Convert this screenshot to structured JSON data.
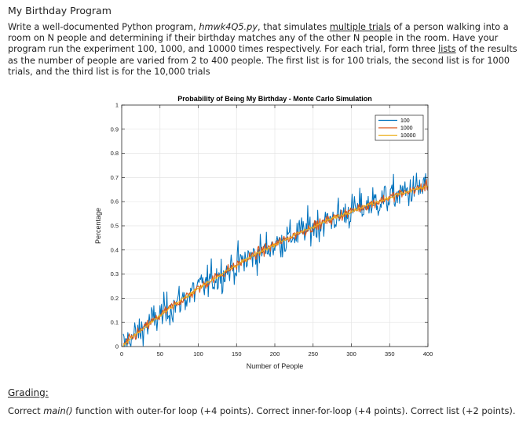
{
  "page": {
    "title": "My Birthday Program",
    "description": {
      "p1": "Write a well-documented Python program, ",
      "filename": "hmwk4Q5.py",
      "p2": ", that simulates ",
      "link1": "multiple trials",
      "p3": " of a person walking into a room on N people and determining if their birthday matches any of the other N people in the room. Have your program run the experiment 100, 1000, and 10000 times respectively.  For each trial, form three ",
      "link2": "lists",
      "p4": " of the results as the number of people are varied from 2 to 400 people. The first list is for 100 trials, the second list is for 1000 trials, and the third list is for the 10,000 trials"
    },
    "grading": {
      "label": "Grading",
      "label_suffix": ":",
      "t1": "Correct ",
      "main_fn": "main()",
      "t2": " function with outer-for loop (+4 points).  Correct inner-for-loop (+4 points). Correct list (+2 points)."
    }
  },
  "chart_data": {
    "type": "line",
    "title": "Probability of Being My Birthday - Monte Carlo Simulation",
    "xlabel": "Number of People",
    "ylabel": "Percentage",
    "xlim": [
      0,
      400
    ],
    "ylim": [
      0,
      1
    ],
    "xticks": [
      0,
      50,
      100,
      150,
      200,
      250,
      300,
      350,
      400
    ],
    "yticks": [
      0,
      0.1,
      0.2,
      0.3,
      0.4,
      0.5,
      0.6,
      0.7,
      0.8,
      0.9,
      1
    ],
    "ytick_labels": [
      "0",
      "0.1",
      "0.2",
      "0.3",
      "0.4",
      "0.5",
      "0.6",
      "0.7",
      "0.8",
      "0.9",
      "1"
    ],
    "grid": true,
    "legend_location": "top-right",
    "x_start": 2,
    "x_end": 400,
    "underlying_formula": "1 - (364/365)^N",
    "series": [
      {
        "name": "100",
        "color": "#0072bd",
        "approx_noise": 0.05
      },
      {
        "name": "1000",
        "color": "#d95319",
        "approx_noise": 0.015
      },
      {
        "name": "10000",
        "color": "#edb120",
        "approx_noise": 0.005
      }
    ]
  }
}
